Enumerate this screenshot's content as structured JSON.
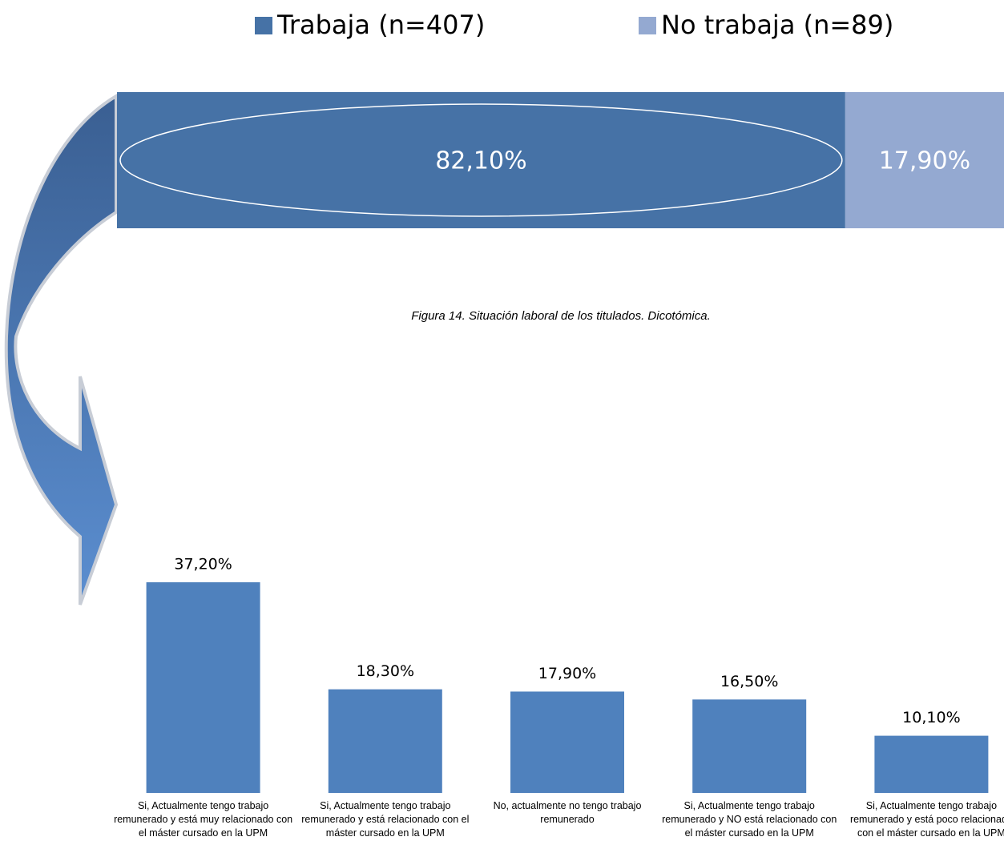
{
  "chart_data": [
    {
      "type": "stacked_bar",
      "orientation": "horizontal",
      "legend": "top",
      "caption": "Figura 14.  Situación laboral de los titulados. Dicotómica.",
      "series": [
        {
          "name": "Trabaja (n=407)",
          "color": "#4672a6",
          "values": [
            82.1
          ],
          "value_labels": [
            "82,10%"
          ]
        },
        {
          "name": "No trabaja (n=89)",
          "color": "#94a9d1",
          "values": [
            17.9
          ],
          "value_labels": [
            "17,90%"
          ]
        }
      ]
    },
    {
      "type": "bar",
      "color": "#4f81bd",
      "categories": [
        "Si, Actualmente tengo trabajo remunerado y está muy relacionado con el máster cursado en la UPM",
        "Si, Actualmente tengo trabajo remunerado y está relacionado con el máster cursado en la UPM",
        "No, actualmente no tengo trabajo remunerado",
        "Si, Actualmente tengo trabajo remunerado y NO está relacionado con el máster cursado en la UPM",
        "Si, Actualmente tengo trabajo remunerado y está poco relacionado con el máster cursado en la UPM"
      ],
      "values": [
        37.2,
        18.3,
        17.9,
        16.5,
        10.1
      ],
      "value_labels": [
        "37,20%",
        "18,30%",
        "17,90%",
        "16,50%",
        "10,10%"
      ]
    }
  ]
}
